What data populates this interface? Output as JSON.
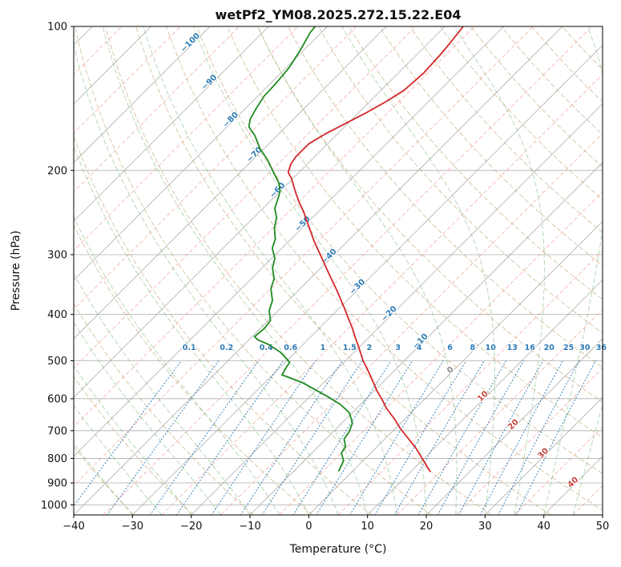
{
  "chart_data": {
    "type": "skewt-log-p",
    "title": "wetPf2_YM08.2025.272.15.22.E04",
    "xlabel": "Temperature (°C)",
    "ylabel": "Pressure (hPa)",
    "xlim": [
      -40,
      50
    ],
    "plim": [
      100,
      1050
    ],
    "x_ticks": [
      -40,
      -30,
      -20,
      -10,
      0,
      10,
      20,
      30,
      40,
      50
    ],
    "x_tick_labels": [
      "−40",
      "−30",
      "−20",
      "−10",
      "0",
      "10",
      "20",
      "30",
      "40",
      "50"
    ],
    "p_ticks": [
      100,
      200,
      300,
      400,
      500,
      600,
      700,
      800,
      900,
      1000
    ],
    "p_tick_labels": [
      "100",
      "200",
      "300",
      "400",
      "500",
      "600",
      "700",
      "800",
      "900",
      "1000"
    ],
    "grid_on": true,
    "skew_degrees": 45,
    "colors": {
      "grid": "#9a9a9a",
      "isotherm": "#9a9a9a",
      "isotherm_minor": "#f0988f",
      "dry_adiabat": "#bfa06a",
      "moist_adiabat": "#7fbf7f",
      "mixing_ratio": "#2e7bb5",
      "temperature": "#d42727",
      "dewpoint": "#1f8a1f"
    },
    "isotherms": {
      "start": -120,
      "end": 50,
      "step": 10
    },
    "isotherms_minor": {
      "start": -115,
      "end": 45,
      "step": 10
    },
    "dry_adiabats": {
      "theta_start_K": 230,
      "theta_end_K": 450,
      "step_K": 10
    },
    "moist_adiabats": {
      "t_start": -30,
      "t_end": 45,
      "step": 5
    },
    "mixing_ratios": {
      "values": [
        0.1,
        0.2,
        0.4,
        0.6,
        1,
        1.5,
        2,
        3,
        4,
        6,
        8,
        10,
        13,
        16,
        20,
        25,
        30,
        36
      ],
      "labels": [
        "0.1",
        "0.2",
        "0.4",
        "0.6",
        "1",
        "1.5",
        "2",
        "3",
        "4",
        "6",
        "8",
        "10",
        "13",
        "16",
        "20",
        "25",
        "30",
        "36"
      ],
      "label_pressure": 475,
      "top_pressure": 500
    },
    "isotherm_labels": [
      {
        "label": "−100",
        "t": -100,
        "p": 109,
        "color": "#2e7bb5"
      },
      {
        "label": "−90",
        "t": -90,
        "p": 132,
        "color": "#2e7bb5"
      },
      {
        "label": "−80",
        "t": -80,
        "p": 158,
        "color": "#2e7bb5"
      },
      {
        "label": "−70",
        "t": -70,
        "p": 187,
        "color": "#2e7bb5"
      },
      {
        "label": "−60",
        "t": -60,
        "p": 222,
        "color": "#2e7bb5"
      },
      {
        "label": "−50",
        "t": -50,
        "p": 261,
        "color": "#2e7bb5"
      },
      {
        "label": "−40",
        "t": -40,
        "p": 305,
        "color": "#2e7bb5"
      },
      {
        "label": "−30",
        "t": -30,
        "p": 353,
        "color": "#2e7bb5"
      },
      {
        "label": "−20",
        "t": -20,
        "p": 402,
        "color": "#2e7bb5"
      },
      {
        "label": "−10",
        "t": -10,
        "p": 459,
        "color": "#2e7bb5"
      },
      {
        "label": "0",
        "t": 0,
        "p": 527,
        "color": "#8a8a8a"
      },
      {
        "label": "10",
        "t": 10,
        "p": 598,
        "color": "#c9463d"
      },
      {
        "label": "20",
        "t": 20,
        "p": 685,
        "color": "#c9463d"
      },
      {
        "label": "30",
        "t": 30,
        "p": 787,
        "color": "#c9463d"
      },
      {
        "label": "40",
        "t": 40,
        "p": 905,
        "color": "#c9463d"
      }
    ],
    "temperature_profile": {
      "name": "temperature",
      "points": [
        [
          851,
          13.2
        ],
        [
          806,
          10.1
        ],
        [
          763,
          7.0
        ],
        [
          729,
          4.1
        ],
        [
          693,
          0.9
        ],
        [
          660,
          -1.9
        ],
        [
          630,
          -4.8
        ],
        [
          601,
          -7.3
        ],
        [
          576,
          -9.7
        ],
        [
          547,
          -12.3
        ],
        [
          519,
          -15.0
        ],
        [
          500,
          -17.0
        ],
        [
          480,
          -18.9
        ],
        [
          462,
          -20.7
        ],
        [
          445,
          -22.5
        ],
        [
          428,
          -24.3
        ],
        [
          412,
          -26.2
        ],
        [
          394,
          -28.4
        ],
        [
          377,
          -30.6
        ],
        [
          358,
          -33.2
        ],
        [
          340,
          -35.9
        ],
        [
          324,
          -38.4
        ],
        [
          308,
          -41.0
        ],
        [
          294,
          -43.4
        ],
        [
          280,
          -45.9
        ],
        [
          268,
          -48.0
        ],
        [
          256,
          -50.2
        ],
        [
          244,
          -52.5
        ],
        [
          233,
          -54.9
        ],
        [
          224,
          -56.8
        ],
        [
          215,
          -58.7
        ],
        [
          208,
          -60.2
        ],
        [
          202,
          -61.8
        ],
        [
          194,
          -62.8
        ],
        [
          187,
          -63.2
        ],
        [
          176,
          -63.2
        ],
        [
          168,
          -62.1
        ],
        [
          160,
          -60.5
        ],
        [
          152,
          -58.8
        ],
        [
          144,
          -57.3
        ],
        [
          136,
          -56.1
        ],
        [
          125,
          -55.7
        ],
        [
          114,
          -56.0
        ],
        [
          107,
          -56.4
        ],
        [
          100,
          -56.9
        ]
      ]
    },
    "dewpoint_profile": {
      "name": "dewpoint",
      "points": [
        [
          849,
          -2.4
        ],
        [
          809,
          -3.3
        ],
        [
          779,
          -5.0
        ],
        [
          755,
          -5.4
        ],
        [
          729,
          -6.9
        ],
        [
          703,
          -7.3
        ],
        [
          675,
          -8.2
        ],
        [
          642,
          -10.5
        ],
        [
          617,
          -13.4
        ],
        [
          593,
          -17.1
        ],
        [
          576,
          -20.0
        ],
        [
          556,
          -23.5
        ],
        [
          543,
          -26.5
        ],
        [
          535,
          -28.4
        ],
        [
          515,
          -29.0
        ],
        [
          504,
          -29.2
        ],
        [
          480,
          -32.5
        ],
        [
          462,
          -35.9
        ],
        [
          452,
          -38.5
        ],
        [
          445,
          -39.6
        ],
        [
          428,
          -39.3
        ],
        [
          412,
          -39.6
        ],
        [
          393,
          -41.5
        ],
        [
          374,
          -42.7
        ],
        [
          353,
          -45.0
        ],
        [
          337,
          -46.1
        ],
        [
          320,
          -48.2
        ],
        [
          305,
          -49.5
        ],
        [
          291,
          -51.6
        ],
        [
          278,
          -52.7
        ],
        [
          264,
          -54.7
        ],
        [
          251,
          -56.1
        ],
        [
          240,
          -58.0
        ],
        [
          229,
          -59.1
        ],
        [
          221,
          -60.0
        ],
        [
          212,
          -61.7
        ],
        [
          202,
          -64.3
        ],
        [
          190,
          -67.5
        ],
        [
          180,
          -70.7
        ],
        [
          169,
          -73.8
        ],
        [
          162,
          -76.3
        ],
        [
          156,
          -77.4
        ],
        [
          148,
          -78.2
        ],
        [
          140,
          -78.9
        ],
        [
          131,
          -79.1
        ],
        [
          122,
          -79.5
        ],
        [
          112,
          -80.6
        ],
        [
          103,
          -81.9
        ],
        [
          100,
          -82.1
        ]
      ]
    }
  }
}
